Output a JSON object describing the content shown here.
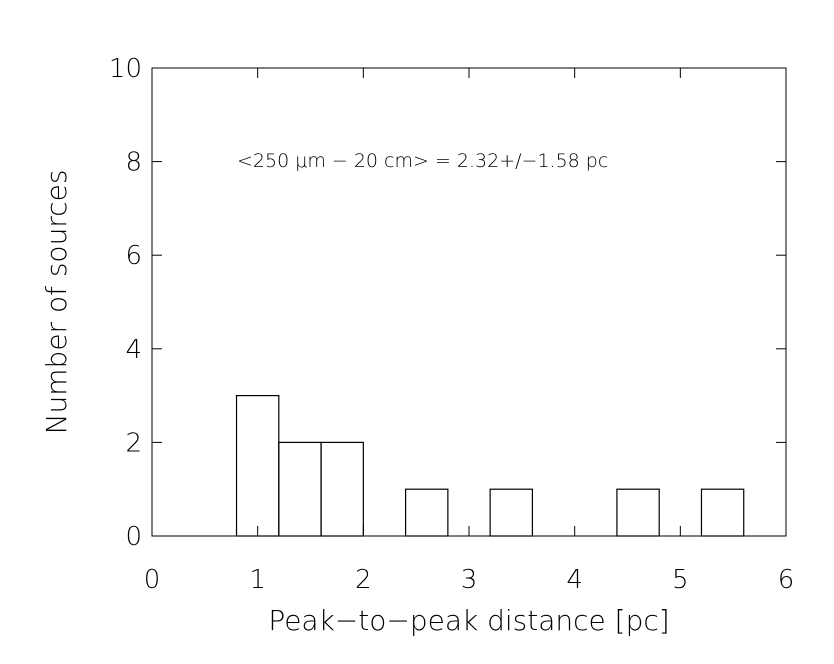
{
  "chart_data": {
    "type": "histogram",
    "xlabel": "Peak−to−peak distance [pc]",
    "ylabel": "Number of sources",
    "annotation": "<250 μm − 20 cm> = 2.32+/−1.58 pc",
    "bins": [
      0.8,
      1.2,
      1.6,
      2.0,
      2.4,
      2.8,
      3.2,
      3.6,
      4.0,
      4.4,
      4.8,
      5.2,
      5.6
    ],
    "values": [
      3,
      2,
      2,
      0,
      1,
      0,
      1,
      0,
      0,
      1,
      0,
      1
    ],
    "color": "#000000",
    "xlim": [
      0,
      6
    ],
    "xticks": [
      0,
      1,
      2,
      3,
      4,
      5,
      6
    ],
    "ylim": [
      0,
      10
    ],
    "yticks": [
      0,
      2,
      4,
      6,
      8,
      10
    ],
    "grid": false
  }
}
